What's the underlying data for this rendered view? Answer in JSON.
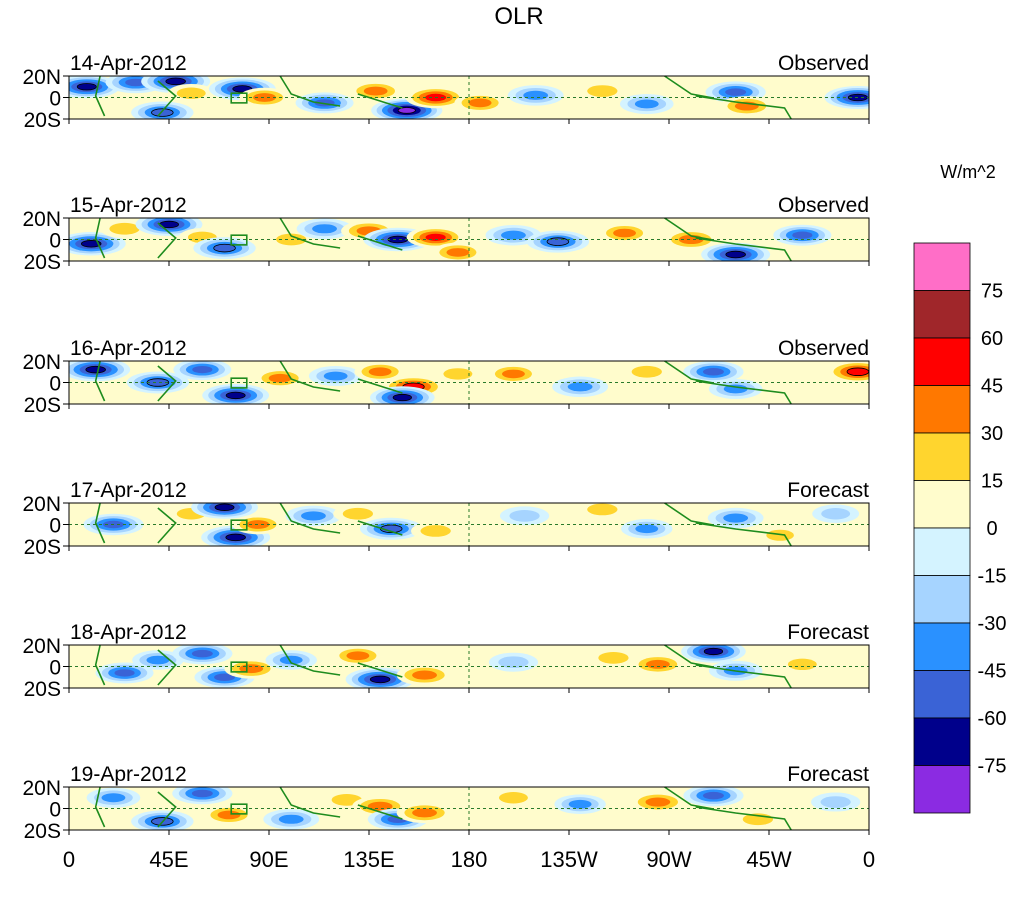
{
  "chart_data": {
    "type": "heatmap",
    "title": "OLR",
    "colorbar": {
      "unit_label": "W/m^2",
      "tick_labels": [
        "75",
        "60",
        "45",
        "30",
        "15",
        "0",
        "-15",
        "-30",
        "-45",
        "-60",
        "-75"
      ],
      "colors_top_to_bottom": [
        "#ff6ec7",
        "#a0262a",
        "#ff0000",
        "#ff7800",
        "#ffd52e",
        "#fffccc",
        "#d4f3ff",
        "#a6d4ff",
        "#2a91ff",
        "#3a63d6",
        "#00008b",
        "#8b2be2"
      ],
      "range": [
        -90,
        90
      ]
    },
    "x_axis": {
      "tick_labels": [
        "0",
        "45E",
        "90E",
        "135E",
        "180",
        "135W",
        "90W",
        "45W",
        "0"
      ],
      "tick_values_deg_east": [
        0,
        45,
        90,
        135,
        180,
        225,
        270,
        315,
        360
      ],
      "range": [
        0,
        360
      ]
    },
    "y_axis": {
      "tick_labels": [
        "20N",
        "0",
        "20S"
      ],
      "tick_values_deg": [
        20,
        0,
        -20
      ],
      "range": [
        -20,
        20
      ]
    },
    "panels": [
      {
        "date": "14-Apr-2012",
        "kind": "Observed"
      },
      {
        "date": "15-Apr-2012",
        "kind": "Observed"
      },
      {
        "date": "16-Apr-2012",
        "kind": "Observed"
      },
      {
        "date": "17-Apr-2012",
        "kind": "Forecast"
      },
      {
        "date": "18-Apr-2012",
        "kind": "Forecast"
      },
      {
        "date": "19-Apr-2012",
        "kind": "Forecast"
      }
    ],
    "anomaly_blobs": [
      [
        {
          "lon": 8,
          "lat": 10,
          "v": -70
        },
        {
          "lon": 30,
          "lat": 14,
          "v": -55
        },
        {
          "lon": 48,
          "lat": 15,
          "v": -75
        },
        {
          "lon": 42,
          "lat": -14,
          "v": -60
        },
        {
          "lon": 55,
          "lat": 4,
          "v": 25
        },
        {
          "lon": 78,
          "lat": 8,
          "v": -70
        },
        {
          "lon": 88,
          "lat": 0,
          "v": 35
        },
        {
          "lon": 115,
          "lat": -5,
          "v": -50
        },
        {
          "lon": 138,
          "lat": 6,
          "v": 40
        },
        {
          "lon": 152,
          "lat": -12,
          "v": -80
        },
        {
          "lon": 165,
          "lat": 0,
          "v": 55
        },
        {
          "lon": 185,
          "lat": -5,
          "v": 35
        },
        {
          "lon": 210,
          "lat": 2,
          "v": -45
        },
        {
          "lon": 240,
          "lat": 6,
          "v": 30
        },
        {
          "lon": 260,
          "lat": -6,
          "v": -40
        },
        {
          "lon": 300,
          "lat": 5,
          "v": -55
        },
        {
          "lon": 305,
          "lat": -8,
          "v": 40
        },
        {
          "lon": 350,
          "lat": 8,
          "v": 15
        },
        {
          "lon": 355,
          "lat": 0,
          "v": -70
        }
      ],
      [
        {
          "lon": 10,
          "lat": -4,
          "v": -75
        },
        {
          "lon": 25,
          "lat": 10,
          "v": 30
        },
        {
          "lon": 45,
          "lat": 14,
          "v": -70
        },
        {
          "lon": 60,
          "lat": 2,
          "v": 25
        },
        {
          "lon": 70,
          "lat": -8,
          "v": -60
        },
        {
          "lon": 100,
          "lat": 0,
          "v": 30
        },
        {
          "lon": 115,
          "lat": 10,
          "v": -45
        },
        {
          "lon": 135,
          "lat": 8,
          "v": 45
        },
        {
          "lon": 148,
          "lat": 0,
          "v": -75
        },
        {
          "lon": 165,
          "lat": 2,
          "v": 50
        },
        {
          "lon": 175,
          "lat": -12,
          "v": 35
        },
        {
          "lon": 200,
          "lat": 4,
          "v": -45
        },
        {
          "lon": 220,
          "lat": -2,
          "v": -60
        },
        {
          "lon": 250,
          "lat": 6,
          "v": 35
        },
        {
          "lon": 280,
          "lat": 0,
          "v": 45
        },
        {
          "lon": 300,
          "lat": -14,
          "v": -75
        },
        {
          "lon": 330,
          "lat": 4,
          "v": -50
        }
      ],
      [
        {
          "lon": 12,
          "lat": 12,
          "v": -75
        },
        {
          "lon": 40,
          "lat": 0,
          "v": -60
        },
        {
          "lon": 60,
          "lat": 12,
          "v": -50
        },
        {
          "lon": 75,
          "lat": -12,
          "v": -70
        },
        {
          "lon": 95,
          "lat": 4,
          "v": 35
        },
        {
          "lon": 120,
          "lat": 6,
          "v": -40
        },
        {
          "lon": 140,
          "lat": 10,
          "v": 35
        },
        {
          "lon": 155,
          "lat": -4,
          "v": 60
        },
        {
          "lon": 150,
          "lat": -14,
          "v": -65
        },
        {
          "lon": 175,
          "lat": 8,
          "v": 25
        },
        {
          "lon": 200,
          "lat": 8,
          "v": 35
        },
        {
          "lon": 230,
          "lat": -4,
          "v": -45
        },
        {
          "lon": 260,
          "lat": 10,
          "v": 30
        },
        {
          "lon": 290,
          "lat": 10,
          "v": -55
        },
        {
          "lon": 300,
          "lat": -6,
          "v": -40
        },
        {
          "lon": 355,
          "lat": 10,
          "v": 60
        }
      ],
      [
        {
          "lon": 20,
          "lat": 0,
          "v": -55
        },
        {
          "lon": 55,
          "lat": 10,
          "v": 25
        },
        {
          "lon": 70,
          "lat": 16,
          "v": -70
        },
        {
          "lon": 75,
          "lat": -12,
          "v": -75
        },
        {
          "lon": 85,
          "lat": 0,
          "v": 35
        },
        {
          "lon": 110,
          "lat": 8,
          "v": -45
        },
        {
          "lon": 130,
          "lat": 10,
          "v": 30
        },
        {
          "lon": 145,
          "lat": -4,
          "v": -60
        },
        {
          "lon": 165,
          "lat": -6,
          "v": 30
        },
        {
          "lon": 205,
          "lat": 8,
          "v": -30
        },
        {
          "lon": 240,
          "lat": 14,
          "v": 30
        },
        {
          "lon": 260,
          "lat": -4,
          "v": -35
        },
        {
          "lon": 300,
          "lat": 6,
          "v": -45
        },
        {
          "lon": 320,
          "lat": -10,
          "v": 20
        },
        {
          "lon": 345,
          "lat": 10,
          "v": -25
        }
      ],
      [
        {
          "lon": 25,
          "lat": -6,
          "v": -50
        },
        {
          "lon": 40,
          "lat": 6,
          "v": -35
        },
        {
          "lon": 60,
          "lat": 12,
          "v": -55
        },
        {
          "lon": 70,
          "lat": -10,
          "v": -55
        },
        {
          "lon": 82,
          "lat": -2,
          "v": 40
        },
        {
          "lon": 100,
          "lat": 6,
          "v": -35
        },
        {
          "lon": 130,
          "lat": 10,
          "v": 35
        },
        {
          "lon": 140,
          "lat": -12,
          "v": -75
        },
        {
          "lon": 160,
          "lat": -8,
          "v": 45
        },
        {
          "lon": 200,
          "lat": 4,
          "v": -30
        },
        {
          "lon": 245,
          "lat": 8,
          "v": 30
        },
        {
          "lon": 265,
          "lat": 2,
          "v": 40
        },
        {
          "lon": 290,
          "lat": 14,
          "v": -65
        },
        {
          "lon": 300,
          "lat": -4,
          "v": -40
        },
        {
          "lon": 330,
          "lat": 2,
          "v": 25
        }
      ],
      [
        {
          "lon": 20,
          "lat": 10,
          "v": -40
        },
        {
          "lon": 42,
          "lat": -12,
          "v": -60
        },
        {
          "lon": 60,
          "lat": 14,
          "v": -55
        },
        {
          "lon": 72,
          "lat": -6,
          "v": 35
        },
        {
          "lon": 100,
          "lat": -10,
          "v": -45
        },
        {
          "lon": 125,
          "lat": 8,
          "v": 30
        },
        {
          "lon": 140,
          "lat": 2,
          "v": 45
        },
        {
          "lon": 148,
          "lat": -10,
          "v": -55
        },
        {
          "lon": 160,
          "lat": -4,
          "v": 45
        },
        {
          "lon": 200,
          "lat": 10,
          "v": 25
        },
        {
          "lon": 230,
          "lat": 4,
          "v": -35
        },
        {
          "lon": 265,
          "lat": 6,
          "v": 45
        },
        {
          "lon": 290,
          "lat": 12,
          "v": -55
        },
        {
          "lon": 310,
          "lat": -10,
          "v": 30
        },
        {
          "lon": 345,
          "lat": 6,
          "v": -30
        }
      ]
    ]
  }
}
